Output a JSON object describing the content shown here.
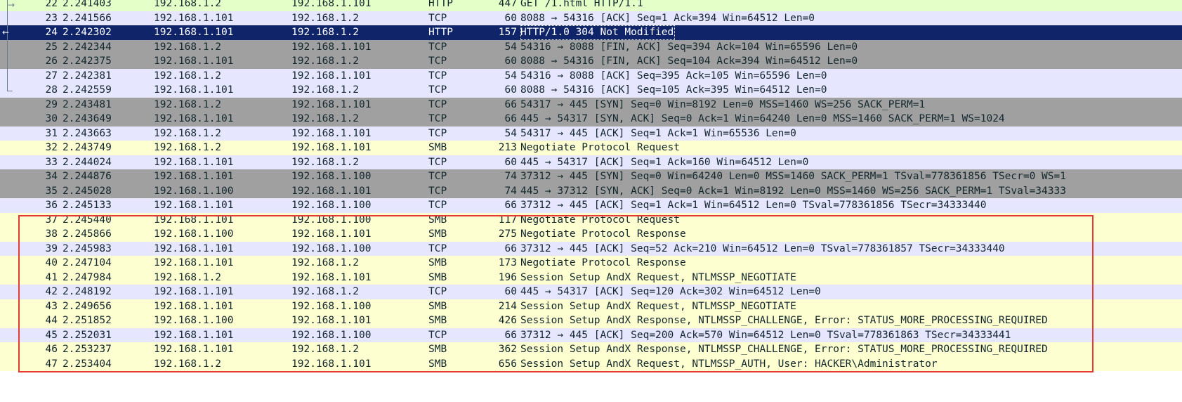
{
  "accent": {
    "selected_row": "#10246a",
    "highlight_box": "#e53935"
  },
  "row_colors": {
    "http": "#e4ffc7",
    "tcp": "#e7e6ff",
    "gray": "#a0a0a0",
    "smb": "#feffd0"
  },
  "packets": [
    {
      "no": "22",
      "time": "2.241403",
      "src": "192.168.1.2",
      "dst": "192.168.1.101",
      "proto": "HTTP",
      "len": "447",
      "info": "GET /1.html HTTP/1.1"
    },
    {
      "no": "23",
      "time": "2.241566",
      "src": "192.168.1.101",
      "dst": "192.168.1.2",
      "proto": "TCP",
      "len": "60",
      "info": "8088 → 54316 [ACK] Seq=1 Ack=394 Win=64512 Len=0"
    },
    {
      "no": "24",
      "time": "2.242302",
      "src": "192.168.1.101",
      "dst": "192.168.1.2",
      "proto": "HTTP",
      "len": "157",
      "info": "HTTP/1.0 304 Not Modified"
    },
    {
      "no": "25",
      "time": "2.242344",
      "src": "192.168.1.2",
      "dst": "192.168.1.101",
      "proto": "TCP",
      "len": "54",
      "info": "54316 → 8088 [FIN, ACK] Seq=394 Ack=104 Win=65596 Len=0"
    },
    {
      "no": "26",
      "time": "2.242375",
      "src": "192.168.1.101",
      "dst": "192.168.1.2",
      "proto": "TCP",
      "len": "60",
      "info": "8088 → 54316 [FIN, ACK] Seq=104 Ack=394 Win=64512 Len=0"
    },
    {
      "no": "27",
      "time": "2.242381",
      "src": "192.168.1.2",
      "dst": "192.168.1.101",
      "proto": "TCP",
      "len": "54",
      "info": "54316 → 8088 [ACK] Seq=395 Ack=105 Win=65596 Len=0"
    },
    {
      "no": "28",
      "time": "2.242559",
      "src": "192.168.1.101",
      "dst": "192.168.1.2",
      "proto": "TCP",
      "len": "60",
      "info": "8088 → 54316 [ACK] Seq=105 Ack=395 Win=64512 Len=0"
    },
    {
      "no": "29",
      "time": "2.243481",
      "src": "192.168.1.2",
      "dst": "192.168.1.101",
      "proto": "TCP",
      "len": "66",
      "info": "54317 → 445 [SYN] Seq=0 Win=8192 Len=0 MSS=1460 WS=256 SACK_PERM=1"
    },
    {
      "no": "30",
      "time": "2.243649",
      "src": "192.168.1.101",
      "dst": "192.168.1.2",
      "proto": "TCP",
      "len": "66",
      "info": "445 → 54317 [SYN, ACK] Seq=0 Ack=1 Win=64240 Len=0 MSS=1460 SACK_PERM=1 WS=1024"
    },
    {
      "no": "31",
      "time": "2.243663",
      "src": "192.168.1.2",
      "dst": "192.168.1.101",
      "proto": "TCP",
      "len": "54",
      "info": "54317 → 445 [ACK] Seq=1 Ack=1 Win=65536 Len=0"
    },
    {
      "no": "32",
      "time": "2.243749",
      "src": "192.168.1.2",
      "dst": "192.168.1.101",
      "proto": "SMB",
      "len": "213",
      "info": "Negotiate Protocol Request"
    },
    {
      "no": "33",
      "time": "2.244024",
      "src": "192.168.1.101",
      "dst": "192.168.1.2",
      "proto": "TCP",
      "len": "60",
      "info": "445 → 54317 [ACK] Seq=1 Ack=160 Win=64512 Len=0"
    },
    {
      "no": "34",
      "time": "2.244876",
      "src": "192.168.1.101",
      "dst": "192.168.1.100",
      "proto": "TCP",
      "len": "74",
      "info": "37312 → 445 [SYN] Seq=0 Win=64240 Len=0 MSS=1460 SACK_PERM=1 TSval=778361856 TSecr=0 WS=1"
    },
    {
      "no": "35",
      "time": "2.245028",
      "src": "192.168.1.100",
      "dst": "192.168.1.101",
      "proto": "TCP",
      "len": "74",
      "info": "445 → 37312 [SYN, ACK] Seq=0 Ack=1 Win=8192 Len=0 MSS=1460 WS=256 SACK_PERM=1 TSval=34333"
    },
    {
      "no": "36",
      "time": "2.245133",
      "src": "192.168.1.101",
      "dst": "192.168.1.100",
      "proto": "TCP",
      "len": "66",
      "info": "37312 → 445 [ACK] Seq=1 Ack=1 Win=64512 Len=0 TSval=778361856 TSecr=34333440"
    },
    {
      "no": "37",
      "time": "2.245440",
      "src": "192.168.1.101",
      "dst": "192.168.1.100",
      "proto": "SMB",
      "len": "117",
      "info": "Negotiate Protocol Request"
    },
    {
      "no": "38",
      "time": "2.245866",
      "src": "192.168.1.100",
      "dst": "192.168.1.101",
      "proto": "SMB",
      "len": "275",
      "info": "Negotiate Protocol Response"
    },
    {
      "no": "39",
      "time": "2.245983",
      "src": "192.168.1.101",
      "dst": "192.168.1.100",
      "proto": "TCP",
      "len": "66",
      "info": "37312 → 445 [ACK] Seq=52 Ack=210 Win=64512 Len=0 TSval=778361857 TSecr=34333440"
    },
    {
      "no": "40",
      "time": "2.247104",
      "src": "192.168.1.101",
      "dst": "192.168.1.2",
      "proto": "SMB",
      "len": "173",
      "info": "Negotiate Protocol Response"
    },
    {
      "no": "41",
      "time": "2.247984",
      "src": "192.168.1.2",
      "dst": "192.168.1.101",
      "proto": "SMB",
      "len": "196",
      "info": "Session Setup AndX Request, NTLMSSP_NEGOTIATE"
    },
    {
      "no": "42",
      "time": "2.248192",
      "src": "192.168.1.101",
      "dst": "192.168.1.2",
      "proto": "TCP",
      "len": "60",
      "info": "445 → 54317 [ACK] Seq=120 Ack=302 Win=64512 Len=0"
    },
    {
      "no": "43",
      "time": "2.249656",
      "src": "192.168.1.101",
      "dst": "192.168.1.100",
      "proto": "SMB",
      "len": "214",
      "info": "Session Setup AndX Request, NTLMSSP_NEGOTIATE"
    },
    {
      "no": "44",
      "time": "2.251852",
      "src": "192.168.1.100",
      "dst": "192.168.1.101",
      "proto": "SMB",
      "len": "426",
      "info": "Session Setup AndX Response, NTLMSSP_CHALLENGE, Error: STATUS_MORE_PROCESSING_REQUIRED"
    },
    {
      "no": "45",
      "time": "2.252031",
      "src": "192.168.1.101",
      "dst": "192.168.1.100",
      "proto": "TCP",
      "len": "66",
      "info": "37312 → 445 [ACK] Seq=200 Ack=570 Win=64512 Len=0 TSval=778361863 TSecr=34333441"
    },
    {
      "no": "46",
      "time": "2.253237",
      "src": "192.168.1.101",
      "dst": "192.168.1.2",
      "proto": "SMB",
      "len": "362",
      "info": "Session Setup AndX Response, NTLMSSP_CHALLENGE, Error: STATUS_MORE_PROCESSING_REQUIRED"
    },
    {
      "no": "47",
      "time": "2.253404",
      "src": "192.168.1.2",
      "dst": "192.168.1.101",
      "proto": "SMB",
      "len": "656",
      "info": "Session Setup AndX Request, NTLMSSP_AUTH, User: HACKER\\Administrator"
    }
  ]
}
